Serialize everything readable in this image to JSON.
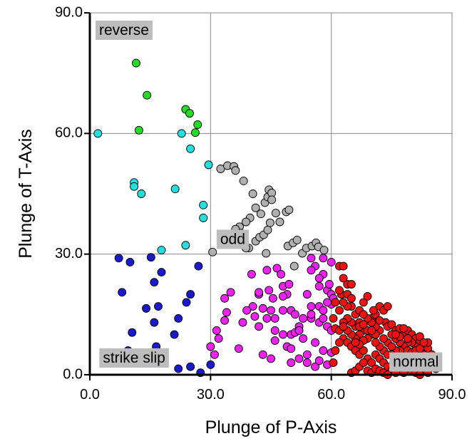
{
  "chart_data": {
    "type": "scatter",
    "title": "",
    "xlabel": "Plunge of P-Axis",
    "ylabel": "Plunge of T-Axis",
    "xlim": [
      0,
      90
    ],
    "ylim": [
      0,
      90
    ],
    "xticks": [
      "0.0",
      "30.0",
      "60.0",
      "90.0"
    ],
    "yticks": [
      "0.0",
      "30.0",
      "60.0",
      "90.0"
    ],
    "grid": true,
    "region_labels": [
      {
        "text": "reverse",
        "x": 8.5,
        "y": 85.5
      },
      {
        "text": "odd",
        "x": 35.5,
        "y": 33.5
      },
      {
        "text": "strike slip",
        "x": 11,
        "y": 4
      },
      {
        "text": "normal",
        "x": 81,
        "y": 3
      }
    ],
    "series": [
      {
        "color": "#22dd22",
        "points": [
          [
            11.5,
            77.5
          ],
          [
            14.2,
            69.5
          ],
          [
            23.8,
            66
          ],
          [
            24.8,
            65
          ],
          [
            26.8,
            62.2
          ],
          [
            12.2,
            60.8
          ],
          [
            26.2,
            60.2
          ]
        ]
      },
      {
        "color": "#22e0e0",
        "points": [
          [
            2,
            60
          ],
          [
            11,
            47.8
          ],
          [
            11,
            46.8
          ],
          [
            12.8,
            45
          ],
          [
            21.2,
            46.2
          ],
          [
            22.8,
            60
          ],
          [
            25,
            56.2
          ],
          [
            29.5,
            52.2
          ],
          [
            28.2,
            42.2
          ],
          [
            28.2,
            39
          ],
          [
            23.8,
            32.2
          ],
          [
            17.8,
            31
          ]
        ]
      },
      {
        "color": "#1a1acc",
        "points": [
          [
            7.2,
            29
          ],
          [
            10,
            28
          ],
          [
            15.2,
            29.2
          ],
          [
            16,
            23
          ],
          [
            17.8,
            25.5
          ],
          [
            27,
            27
          ],
          [
            8,
            20.5
          ],
          [
            25,
            20
          ],
          [
            24,
            18
          ],
          [
            14,
            16.5
          ],
          [
            17,
            17
          ],
          [
            16,
            13
          ],
          [
            22,
            14
          ],
          [
            10.5,
            10.5
          ],
          [
            21,
            10
          ],
          [
            9.5,
            6
          ],
          [
            16.5,
            7
          ],
          [
            5,
            3
          ],
          [
            25,
            2
          ],
          [
            22,
            1.5
          ],
          [
            30,
            2.5
          ],
          [
            27.5,
            0.5
          ]
        ]
      },
      {
        "color": "#b0b0b0",
        "points": [
          [
            32.5,
            51.2
          ],
          [
            34.2,
            52
          ],
          [
            35.8,
            51.8
          ],
          [
            36.2,
            50.8
          ],
          [
            38.2,
            48.2
          ],
          [
            40.5,
            45
          ],
          [
            41.2,
            41.5
          ],
          [
            43.5,
            42.8
          ],
          [
            44.2,
            44.2
          ],
          [
            44.5,
            46
          ],
          [
            45.2,
            45.2
          ],
          [
            45.2,
            43.5
          ],
          [
            42.5,
            40
          ],
          [
            39.8,
            39
          ],
          [
            38.8,
            38
          ],
          [
            37.2,
            36.8
          ],
          [
            36.2,
            36.2
          ],
          [
            35.5,
            32.5
          ],
          [
            37.5,
            35.2
          ],
          [
            41.2,
            33.2
          ],
          [
            42.2,
            34.2
          ],
          [
            43.2,
            34.8
          ],
          [
            44.2,
            36
          ],
          [
            43.8,
            30.2
          ],
          [
            44.8,
            37.8
          ],
          [
            46.2,
            40.2
          ],
          [
            47.2,
            38
          ],
          [
            48.8,
            40.5
          ],
          [
            49.5,
            41
          ],
          [
            49.2,
            32
          ],
          [
            50.5,
            32.8
          ],
          [
            51.5,
            33.5
          ],
          [
            50.8,
            27
          ],
          [
            52.8,
            30.2
          ],
          [
            53.8,
            31.5
          ],
          [
            55.2,
            32
          ],
          [
            56.2,
            32.8
          ],
          [
            56.8,
            31.8
          ],
          [
            58.2,
            31
          ],
          [
            39.5,
            31.5
          ],
          [
            30.5,
            30.5
          ],
          [
            38.8,
            31.5
          ]
        ]
      },
      {
        "color": "#ee22ee",
        "points": [
          [
            40.2,
            25
          ],
          [
            44.5,
            21
          ],
          [
            46.5,
            26.5
          ],
          [
            47.5,
            25
          ],
          [
            48,
            22
          ],
          [
            49.5,
            22.5
          ],
          [
            49,
            20
          ],
          [
            48,
            19.5
          ],
          [
            45.5,
            19
          ],
          [
            42,
            20
          ],
          [
            40.5,
            17
          ],
          [
            39,
            16
          ],
          [
            33.5,
            19
          ],
          [
            34,
            15.5
          ],
          [
            33.5,
            13.5
          ],
          [
            31.5,
            11
          ],
          [
            32,
            9
          ],
          [
            30,
            7
          ],
          [
            31,
            5
          ],
          [
            37,
            6.5
          ],
          [
            35,
            20.5
          ],
          [
            38,
            13
          ],
          [
            42,
            12
          ],
          [
            45,
            16
          ],
          [
            46,
            14
          ],
          [
            48,
            16
          ],
          [
            50,
            16
          ],
          [
            51,
            15
          ],
          [
            53,
            14
          ],
          [
            55,
            14
          ],
          [
            57,
            13
          ],
          [
            58,
            14
          ],
          [
            59,
            12
          ],
          [
            60,
            11
          ],
          [
            60,
            17.5
          ],
          [
            59,
            21
          ],
          [
            57,
            22
          ],
          [
            58,
            25
          ],
          [
            56,
            27
          ],
          [
            58,
            29
          ],
          [
            60,
            28
          ],
          [
            55,
            26
          ],
          [
            54,
            20
          ],
          [
            55,
            17
          ],
          [
            57,
            17
          ],
          [
            58,
            16
          ],
          [
            55,
            15
          ],
          [
            52,
            12
          ],
          [
            50,
            10
          ],
          [
            48,
            10
          ],
          [
            46,
            11
          ],
          [
            44,
            14
          ],
          [
            43,
            16.5
          ],
          [
            46,
            8.5
          ],
          [
            49,
            7
          ],
          [
            50,
            6.5
          ],
          [
            54,
            5
          ],
          [
            52,
            4
          ],
          [
            54,
            3
          ],
          [
            56,
            2
          ],
          [
            57,
            3.5
          ],
          [
            58,
            6
          ],
          [
            60,
            5.5
          ],
          [
            59,
            2.5
          ],
          [
            56,
            8
          ],
          [
            53,
            9
          ],
          [
            51,
            10.5
          ],
          [
            50,
            3
          ],
          [
            52,
            11
          ],
          [
            43,
            5
          ],
          [
            45,
            4
          ],
          [
            41,
            14.5
          ],
          [
            42,
            20.5
          ],
          [
            44,
            26
          ],
          [
            55,
            29
          ],
          [
            57,
            24
          ],
          [
            60,
            20
          ],
          [
            59.5,
            22.5
          ],
          [
            60.5,
            19
          ],
          [
            59,
            18
          ]
        ]
      },
      {
        "color": "#ee1111",
        "points": [
          [
            62,
            27
          ],
          [
            63,
            27
          ],
          [
            64,
            22.5
          ],
          [
            65,
            22.5
          ],
          [
            62.5,
            20
          ],
          [
            64,
            20
          ],
          [
            65,
            17
          ],
          [
            66,
            15
          ],
          [
            67,
            16
          ],
          [
            68,
            18
          ],
          [
            69,
            19.5
          ],
          [
            70,
            14
          ],
          [
            71,
            15
          ],
          [
            70.5,
            16
          ],
          [
            72,
            17
          ],
          [
            73,
            16
          ],
          [
            74,
            17
          ],
          [
            73.5,
            13
          ],
          [
            74,
            12
          ],
          [
            75,
            12.5
          ],
          [
            76,
            11
          ],
          [
            77,
            11.5
          ],
          [
            78,
            10
          ],
          [
            79,
            11
          ],
          [
            80,
            10
          ],
          [
            81,
            9
          ],
          [
            82,
            8
          ],
          [
            83,
            7
          ],
          [
            84,
            6.5
          ],
          [
            85,
            5
          ],
          [
            84,
            4
          ],
          [
            83,
            3
          ],
          [
            82,
            5
          ],
          [
            81,
            7
          ],
          [
            80,
            8
          ],
          [
            79,
            8
          ],
          [
            78,
            7
          ],
          [
            77,
            8
          ],
          [
            76,
            9
          ],
          [
            75,
            10
          ],
          [
            74,
            8
          ],
          [
            73,
            6
          ],
          [
            72,
            7
          ],
          [
            71,
            8
          ],
          [
            70,
            10
          ],
          [
            69,
            9
          ],
          [
            68,
            11
          ],
          [
            67,
            10
          ],
          [
            66,
            12
          ],
          [
            65,
            13
          ],
          [
            64,
            14
          ],
          [
            63,
            13
          ],
          [
            62,
            16
          ],
          [
            61,
            18
          ],
          [
            60.5,
            14
          ],
          [
            61,
            11.5
          ],
          [
            62,
            11
          ],
          [
            63,
            9
          ],
          [
            64,
            8
          ],
          [
            65,
            7
          ],
          [
            66,
            6
          ],
          [
            67,
            5
          ],
          [
            68,
            6
          ],
          [
            69,
            4
          ],
          [
            70,
            3
          ],
          [
            71,
            5
          ],
          [
            72,
            4
          ],
          [
            73,
            3
          ],
          [
            74,
            2
          ],
          [
            75,
            1
          ],
          [
            76,
            2
          ],
          [
            77,
            3
          ],
          [
            78,
            2
          ],
          [
            79,
            3
          ],
          [
            80,
            4
          ],
          [
            81,
            3
          ],
          [
            82,
            2
          ],
          [
            83,
            1
          ],
          [
            84,
            2
          ],
          [
            85,
            3
          ],
          [
            78,
            5
          ],
          [
            77,
            6
          ],
          [
            76,
            6
          ],
          [
            75,
            5
          ],
          [
            74,
            5
          ],
          [
            73,
            9
          ],
          [
            72,
            11
          ],
          [
            71,
            12
          ],
          [
            70,
            13
          ],
          [
            69,
            14
          ],
          [
            68,
            15
          ],
          [
            67,
            13
          ],
          [
            66,
            9
          ],
          [
            65,
            10
          ],
          [
            64,
            11
          ],
          [
            63,
            12
          ],
          [
            62,
            8
          ],
          [
            61,
            6
          ],
          [
            60.5,
            3
          ],
          [
            65,
            0.5
          ],
          [
            66,
            1
          ],
          [
            67,
            2
          ],
          [
            68,
            3
          ],
          [
            69,
            1
          ],
          [
            70,
            0.5
          ],
          [
            71,
            1.5
          ],
          [
            72,
            1
          ],
          [
            73,
            0.5
          ],
          [
            74,
            0
          ],
          [
            76,
            0.5
          ],
          [
            78,
            0.5
          ],
          [
            80,
            1
          ],
          [
            81,
            0.5
          ],
          [
            82,
            0
          ],
          [
            84,
            0.5
          ],
          [
            86,
            1.5
          ],
          [
            85,
            2
          ],
          [
            83,
            5
          ],
          [
            86,
            3
          ],
          [
            84,
            8
          ],
          [
            82,
            9.5
          ],
          [
            79,
            9
          ],
          [
            78,
            11.5
          ],
          [
            77,
            9.5
          ],
          [
            76,
            10
          ],
          [
            72,
            13.5
          ],
          [
            71,
            10
          ],
          [
            69,
            11
          ],
          [
            68,
            8.5
          ],
          [
            67,
            7.5
          ],
          [
            66,
            8
          ],
          [
            64,
            17
          ],
          [
            63,
            18
          ],
          [
            62,
            21
          ],
          [
            63,
            24
          ],
          [
            65,
            19
          ],
          [
            67,
            12
          ],
          [
            68,
            12.5
          ],
          [
            70,
            11
          ],
          [
            75,
            7
          ],
          [
            79,
            6
          ],
          [
            80,
            5.5
          ],
          [
            81,
            6
          ],
          [
            82,
            6.5
          ],
          [
            83,
            8
          ]
        ]
      }
    ]
  }
}
